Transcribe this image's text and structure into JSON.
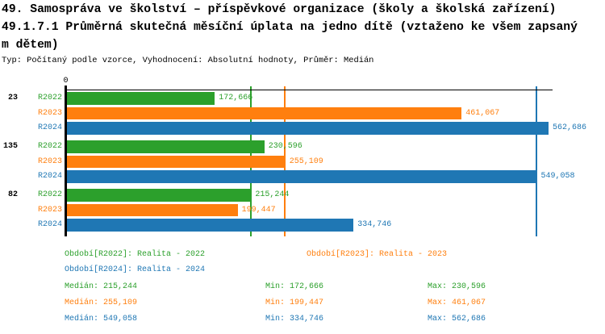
{
  "header": {
    "title_line1": "49. Samospráva ve školství – příspěvkové organizace (školy a školská zařízení)",
    "title_line2": "49.1.7.1 Průměrná skutečná měsíční úplata na jedno dítě (vztaženo ke všem zapsaný",
    "title_line3": "m dětem)",
    "subtitle": "Typ: Počítaný podle vzorce, Vyhodnocení: Absolutní hodnoty, Průměr: Medián"
  },
  "colors": {
    "green": "#2ca02c",
    "orange": "#ff7f0e",
    "blue": "#1f77b4",
    "axis": "#000000"
  },
  "chart_data": {
    "type": "bar",
    "orientation": "horizontal",
    "x_axis": {
      "zero_label": "0",
      "min": 0,
      "max": 562686,
      "other_ticks_visible": false
    },
    "grid": false,
    "groups": [
      {
        "label": "23",
        "bars": [
          {
            "series": "R2022",
            "value": 172666,
            "display": "172,666",
            "color_key": "green"
          },
          {
            "series": "R2023",
            "value": 461067,
            "display": "461,067",
            "color_key": "orange"
          },
          {
            "series": "R2024",
            "value": 562686,
            "display": "562,686",
            "color_key": "blue"
          }
        ]
      },
      {
        "label": "135",
        "bars": [
          {
            "series": "R2022",
            "value": 230596,
            "display": "230,596",
            "color_key": "green"
          },
          {
            "series": "R2023",
            "value": 255109,
            "display": "255,109",
            "color_key": "orange"
          },
          {
            "series": "R2024",
            "value": 549058,
            "display": "549,058",
            "color_key": "blue"
          }
        ]
      },
      {
        "label": "82",
        "bars": [
          {
            "series": "R2022",
            "value": 215244,
            "display": "215,244",
            "color_key": "green"
          },
          {
            "series": "R2023",
            "value": 199447,
            "display": "199,447",
            "color_key": "orange"
          },
          {
            "series": "R2024",
            "value": 334746,
            "display": "334,746",
            "color_key": "blue"
          }
        ]
      }
    ],
    "median_lines": [
      {
        "value": 215244,
        "color_key": "green"
      },
      {
        "value": 255109,
        "color_key": "orange"
      },
      {
        "value": 549058,
        "color_key": "blue"
      }
    ],
    "legend": [
      {
        "label": "Období[R2022]: Realita - 2022",
        "color_key": "green"
      },
      {
        "label": "Období[R2023]: Realita - 2023",
        "color_key": "orange"
      },
      {
        "label": "Období[R2024]: Realita - 2024",
        "color_key": "blue"
      }
    ],
    "stats": [
      {
        "color_key": "green",
        "median": "Medián: 215,244",
        "min": "Min: 172,666",
        "max": "Max: 230,596"
      },
      {
        "color_key": "orange",
        "median": "Medián: 255,109",
        "min": "Min: 199,447",
        "max": "Max: 461,067"
      },
      {
        "color_key": "blue",
        "median": "Medián: 549,058",
        "min": "Min: 334,746",
        "max": "Max: 562,686"
      }
    ]
  }
}
